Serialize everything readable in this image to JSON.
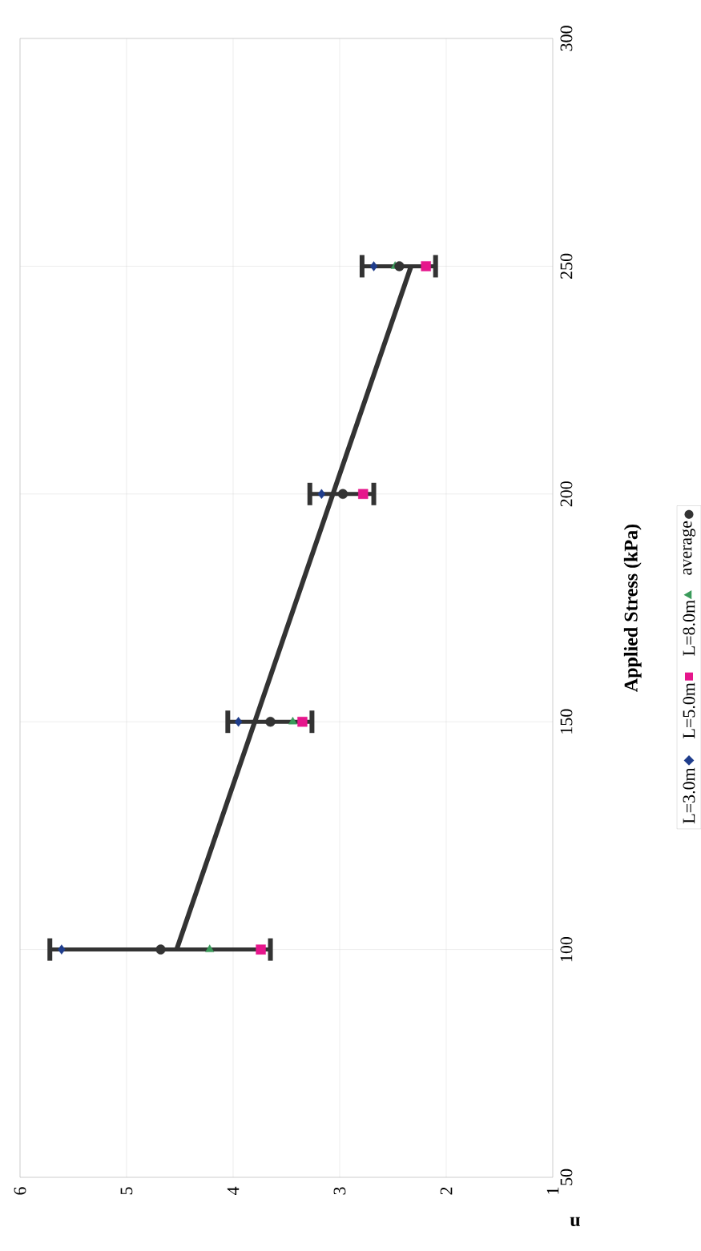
{
  "chart_data": {
    "type": "scatter",
    "xlabel": "n",
    "ylabel": "Applied Stress (kPa)",
    "series": [
      {
        "name": "L=3.0m",
        "color": "#1f3d8c",
        "marker": "diamond",
        "x": [
          5.61,
          3.95,
          3.17,
          2.68
        ],
        "values": [
          100,
          150,
          200,
          250
        ]
      },
      {
        "name": "L=5.0m",
        "color": "#e6168c",
        "marker": "square",
        "x": [
          3.74,
          3.35,
          2.78,
          2.19
        ],
        "values": [
          100,
          150,
          200,
          250
        ]
      },
      {
        "name": "L=8.0m",
        "color": "#3a9a5a",
        "marker": "triangle",
        "x": [
          4.22,
          3.44,
          null,
          2.48
        ],
        "values": [
          100,
          150,
          null,
          250
        ]
      },
      {
        "name": "average",
        "color": "#333333",
        "marker": "circle",
        "x": [
          4.68,
          3.65,
          2.97,
          2.44
        ],
        "values": [
          100,
          150,
          200,
          250
        ],
        "xerrors": [
          [
            3.65,
            5.72
          ],
          [
            3.26,
            4.05
          ],
          [
            2.68,
            3.28
          ],
          [
            2.1,
            2.79
          ]
        ]
      },
      {
        "type": "line",
        "color": "#333333",
        "marker": "none",
        "x": [
          4.53,
          2.33
        ],
        "values": [
          100,
          250
        ]
      }
    ],
    "xlim": [
      6,
      1
    ],
    "ylim": [
      50,
      300
    ],
    "xticks": [
      1,
      2,
      3,
      4,
      5,
      6
    ],
    "yticks": [
      50,
      100,
      150,
      200,
      250,
      300
    ],
    "grid": true,
    "legend": "right"
  }
}
